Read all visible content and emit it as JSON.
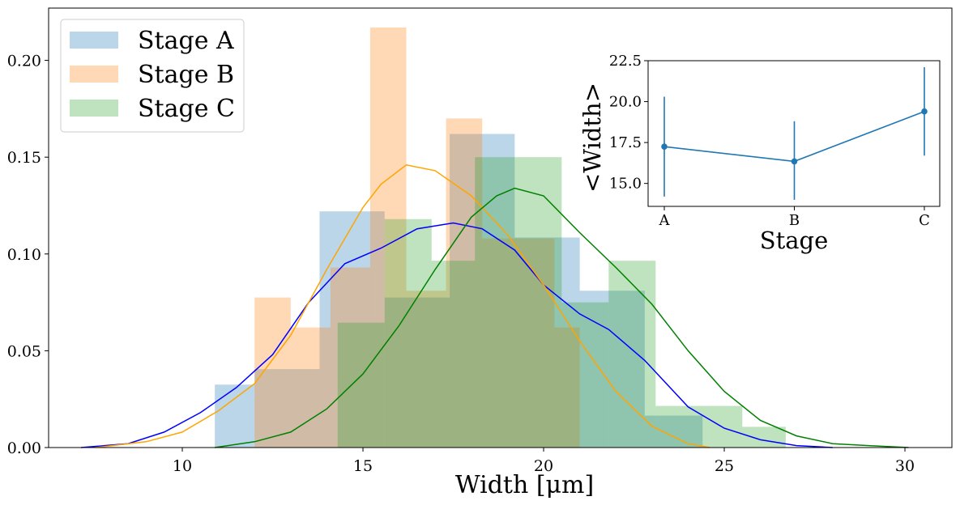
{
  "chart_data": [
    {
      "type": "bar",
      "xlabel": "Width [μm]",
      "xlim": [
        6.3,
        31.3
      ],
      "ylim": [
        0,
        0.227
      ],
      "x_ticks": [
        10,
        15,
        20,
        25,
        30
      ],
      "y_ticks": [
        "0.00",
        "0.05",
        "0.10",
        "0.15",
        "0.20"
      ],
      "legend": "top-left",
      "series": [
        {
          "name": "Stage A",
          "color": "#1f77b4",
          "kde_color": "#0000ff",
          "histogram": [
            {
              "x0": 10.9,
              "x1": 12.0,
              "y": 0.0325
            },
            {
              "x0": 12.0,
              "x1": 13.8,
              "y": 0.0405
            },
            {
              "x0": 13.8,
              "x1": 15.6,
              "y": 0.122
            },
            {
              "x0": 15.6,
              "x1": 17.4,
              "y": 0.0775
            },
            {
              "x0": 17.4,
              "x1": 19.2,
              "y": 0.162
            },
            {
              "x0": 19.2,
              "x1": 21.0,
              "y": 0.1085
            },
            {
              "x0": 21.0,
              "x1": 22.8,
              "y": 0.081
            },
            {
              "x0": 22.8,
              "x1": 24.4,
              "y": 0.0165
            }
          ],
          "kde": [
            [
              7.2,
              0
            ],
            [
              8.5,
              0.002
            ],
            [
              9.5,
              0.008
            ],
            [
              10.5,
              0.018
            ],
            [
              11.5,
              0.031
            ],
            [
              12.5,
              0.048
            ],
            [
              13.5,
              0.075
            ],
            [
              14.5,
              0.095
            ],
            [
              15.5,
              0.103
            ],
            [
              16.5,
              0.113
            ],
            [
              17.5,
              0.116
            ],
            [
              18.3,
              0.113
            ],
            [
              19.2,
              0.102
            ],
            [
              20.0,
              0.084
            ],
            [
              21.0,
              0.069
            ],
            [
              21.8,
              0.061
            ],
            [
              22.8,
              0.045
            ],
            [
              24.0,
              0.021
            ],
            [
              25.0,
              0.01
            ],
            [
              26.0,
              0.004
            ],
            [
              27.0,
              0.001
            ],
            [
              28.0,
              0
            ]
          ]
        },
        {
          "name": "Stage B",
          "color": "#ff7f0e",
          "kde_color": "#ffa500",
          "histogram": [
            {
              "x0": 12.0,
              "x1": 13.0,
              "y": 0.0775
            },
            {
              "x0": 13.0,
              "x1": 14.1,
              "y": 0.062
            },
            {
              "x0": 14.1,
              "x1": 15.2,
              "y": 0.093
            },
            {
              "x0": 15.2,
              "x1": 16.2,
              "y": 0.217
            },
            {
              "x0": 16.2,
              "x1": 17.3,
              "y": 0.081
            },
            {
              "x0": 17.3,
              "x1": 18.3,
              "y": 0.17
            },
            {
              "x0": 18.3,
              "x1": 19.3,
              "y": 0.108
            },
            {
              "x0": 19.3,
              "x1": 20.3,
              "y": 0.108
            },
            {
              "x0": 20.3,
              "x1": 21.0,
              "y": 0.062
            }
          ],
          "kde": [
            [
              7.6,
              0
            ],
            [
              9.0,
              0.003
            ],
            [
              10.0,
              0.008
            ],
            [
              11.0,
              0.019
            ],
            [
              12.0,
              0.033
            ],
            [
              13.0,
              0.058
            ],
            [
              14.0,
              0.092
            ],
            [
              15.0,
              0.124
            ],
            [
              15.5,
              0.136
            ],
            [
              16.2,
              0.146
            ],
            [
              17.0,
              0.143
            ],
            [
              18.0,
              0.13
            ],
            [
              19.0,
              0.11
            ],
            [
              20.0,
              0.084
            ],
            [
              21.0,
              0.055
            ],
            [
              22.0,
              0.029
            ],
            [
              23.0,
              0.011
            ],
            [
              24.0,
              0.002
            ],
            [
              24.6,
              0
            ]
          ]
        },
        {
          "name": "Stage C",
          "color": "#2ca02c",
          "kde_color": "#008000",
          "histogram": [
            {
              "x0": 14.3,
              "x1": 15.6,
              "y": 0.0645
            },
            {
              "x0": 15.6,
              "x1": 16.9,
              "y": 0.118
            },
            {
              "x0": 16.9,
              "x1": 18.1,
              "y": 0.0965
            },
            {
              "x0": 18.1,
              "x1": 19.2,
              "y": 0.15
            },
            {
              "x0": 19.2,
              "x1": 20.5,
              "y": 0.15
            },
            {
              "x0": 20.5,
              "x1": 21.8,
              "y": 0.075
            },
            {
              "x0": 21.8,
              "x1": 23.1,
              "y": 0.0965
            },
            {
              "x0": 23.1,
              "x1": 24.4,
              "y": 0.0215
            },
            {
              "x0": 24.4,
              "x1": 25.5,
              "y": 0.0215
            },
            {
              "x0": 25.5,
              "x1": 26.7,
              "y": 0.0107
            }
          ],
          "kde": [
            [
              10.9,
              0
            ],
            [
              12.0,
              0.003
            ],
            [
              13.0,
              0.008
            ],
            [
              14.0,
              0.02
            ],
            [
              15.0,
              0.038
            ],
            [
              16.0,
              0.063
            ],
            [
              17.0,
              0.092
            ],
            [
              18.0,
              0.119
            ],
            [
              18.7,
              0.13
            ],
            [
              19.2,
              0.134
            ],
            [
              20.0,
              0.13
            ],
            [
              21.0,
              0.111
            ],
            [
              22.0,
              0.093
            ],
            [
              23.0,
              0.074
            ],
            [
              24.0,
              0.05
            ],
            [
              25.0,
              0.029
            ],
            [
              26.0,
              0.014
            ],
            [
              27.0,
              0.006
            ],
            [
              28.0,
              0.002
            ],
            [
              29.0,
              0.001
            ],
            [
              30.1,
              0
            ]
          ]
        }
      ]
    },
    {
      "type": "line",
      "inset": true,
      "xlabel": "Stage",
      "ylabel": "<Width>",
      "categories": [
        "A",
        "B",
        "C"
      ],
      "ylim": [
        13.6,
        22.5
      ],
      "y_ticks": [
        "15.0",
        "17.5",
        "20.0",
        "22.5"
      ],
      "color": "#1f77b4",
      "values": [
        17.25,
        16.35,
        19.4
      ],
      "errors_low": [
        14.2,
        14.0,
        16.7
      ],
      "errors_high": [
        20.3,
        18.8,
        22.1
      ]
    }
  ]
}
